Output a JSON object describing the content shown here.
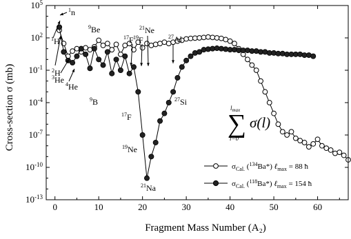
{
  "chart_data": {
    "type": "line",
    "xlabel": "Fragment Mass Number (A₂)",
    "ylabel": "Cross-section σ (mb)",
    "xlim": [
      -2,
      67
    ],
    "ylim": [
      1e-13,
      100000.0
    ],
    "yscale": "log",
    "xticks": [
      "0",
      "10",
      "20",
      "30",
      "40",
      "50",
      "60"
    ],
    "yticks": [
      {
        "value": 1e-13,
        "base": "10",
        "exp": "-13"
      },
      {
        "value": 1e-10,
        "base": "10",
        "exp": "-10"
      },
      {
        "value": 1e-07,
        "base": "10",
        "exp": "-7"
      },
      {
        "value": 0.0001,
        "base": "10",
        "exp": "-4"
      },
      {
        "value": 0.1,
        "base": "10",
        "exp": "-1"
      },
      {
        "value": 100,
        "base": "10",
        "exp": "2"
      },
      {
        "value": 100000,
        "base": "10",
        "exp": "5"
      }
    ],
    "series": [
      {
        "legend": {
          "sigma": "σ",
          "cal": "Cal.",
          "mass": "134",
          "nucleus": "Ba*)",
          "lsym": "ℓ",
          "lsub": "max",
          "value": "= 88 ħ"
        },
        "marker": "open-circle",
        "x": [
          1,
          2,
          3,
          4,
          5,
          6,
          7,
          8,
          9,
          10,
          11,
          12,
          13,
          14,
          15,
          16,
          17,
          18,
          19,
          20,
          21,
          22,
          23,
          24,
          25,
          26,
          27,
          28,
          29,
          30,
          31,
          32,
          33,
          34,
          35,
          36,
          37,
          38,
          39,
          40,
          41,
          42,
          43,
          44,
          45,
          46,
          47,
          48,
          49,
          50,
          51,
          52,
          53,
          54,
          55,
          56,
          57,
          58,
          59,
          60,
          61,
          62,
          63,
          64,
          65,
          66,
          67
        ],
        "y": [
          500,
          30,
          2,
          6,
          10,
          5,
          12,
          8,
          15,
          60,
          20,
          30,
          8,
          25,
          3,
          20,
          30,
          8,
          40,
          12,
          30,
          20,
          25,
          30,
          40,
          30,
          40,
          50,
          60,
          80,
          90,
          95,
          100,
          110,
          120,
          110,
          100,
          90,
          70,
          50,
          30,
          10,
          3,
          1,
          0.3,
          0.1,
          0.01,
          0.001,
          0.0001,
          1e-05,
          1e-06,
          2e-07,
          1e-07,
          2e-07,
          5e-08,
          3e-08,
          2e-08,
          8e-09,
          1.5e-08,
          4e-08,
          1e-08,
          6e-09,
          4e-09,
          2e-09,
          2.5e-09,
          1.3e-09,
          5e-10
        ]
      },
      {
        "legend": {
          "sigma": "σ",
          "cal": "Cal.",
          "mass": "118",
          "nucleus": "Ba*)",
          "lsym": "ℓ",
          "lsub": "max",
          "value": "= 154 ħ"
        },
        "marker": "filled-circle",
        "x": [
          1,
          2,
          3,
          4,
          5,
          6,
          7,
          8,
          9,
          10,
          11,
          12,
          13,
          14,
          15,
          16,
          17,
          18,
          19,
          20,
          21,
          22,
          23,
          24,
          25,
          26,
          27,
          28,
          29,
          30,
          31,
          32,
          33,
          34,
          35,
          36,
          37,
          38,
          39,
          40,
          41,
          42,
          43,
          44,
          45,
          46,
          47,
          48,
          49,
          50,
          51,
          52,
          53,
          54,
          55,
          56,
          57,
          58,
          59
        ],
        "y": [
          1000,
          5,
          0.8,
          0.5,
          2,
          10,
          3,
          0.15,
          10,
          1,
          0.3,
          5,
          0.05,
          1,
          0.1,
          2,
          0.05,
          0.2,
          0.001,
          1e-07,
          1e-11,
          1e-09,
          2e-08,
          2e-06,
          1e-05,
          0.0001,
          0.001,
          0.02,
          0.2,
          0.8,
          2,
          4,
          5,
          8,
          9,
          10,
          11,
          10,
          9,
          8,
          8,
          7,
          7,
          7,
          6,
          6,
          5,
          5,
          4,
          4,
          3.5,
          3.5,
          3,
          3,
          3,
          3,
          2.5,
          2.5,
          2
        ]
      }
    ],
    "annotations": [
      {
        "sup": "1",
        "base": "n"
      },
      {
        "sup": "1",
        "base": "H"
      },
      {
        "sup": "2",
        "base": "H"
      },
      {
        "sup": "3",
        "base": "He"
      },
      {
        "sup": "4",
        "base": "He"
      },
      {
        "sup": "9",
        "base": "Be"
      },
      {
        "sup": "9",
        "base": "B"
      },
      {
        "sup": "17",
        "base": "F"
      },
      {
        "sup": "19",
        "base": "F"
      },
      {
        "sup": "21",
        "base": "Ne"
      },
      {
        "sup": "27",
        "base": "Al"
      },
      {
        "sup": "17",
        "base": "F"
      },
      {
        "sup": "19",
        "base": "Ne"
      },
      {
        "sup": "21",
        "base": "Na"
      },
      {
        "sup": "27",
        "base": "Si"
      }
    ],
    "formula": {
      "sum": "∑",
      "upper": "l",
      "upper_sub": "max",
      "lower": "l=0",
      "expr": "σ(l)"
    }
  }
}
